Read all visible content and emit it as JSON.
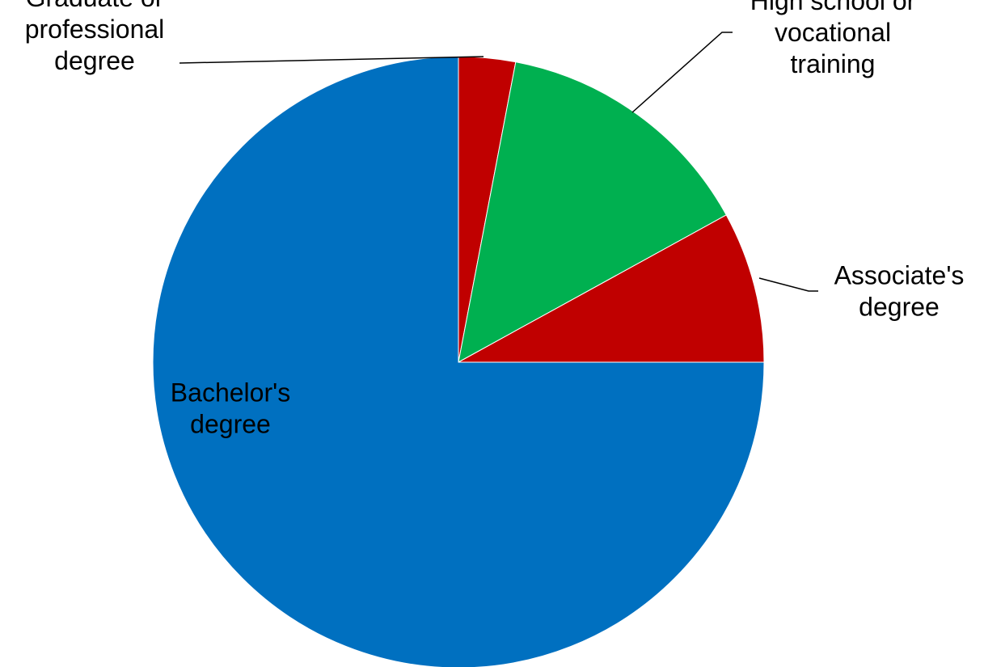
{
  "chart_data": {
    "type": "pie",
    "start_angle_deg": 0,
    "direction": "clockwise",
    "slices": [
      {
        "label": "Graduate or professional degree",
        "label_lines": [
          "Graduate or",
          "professional",
          "degree"
        ],
        "value": 3,
        "color": "#C00000"
      },
      {
        "label": "High school or vocational training",
        "label_lines": [
          "High school or",
          "vocational",
          "training"
        ],
        "value": 14,
        "color": "#00B050"
      },
      {
        "label": "Associate's degree",
        "label_lines": [
          "Associate's",
          "degree"
        ],
        "value": 8,
        "color": "#C00000"
      },
      {
        "label": "Bachelor's degree",
        "label_lines": [
          "Bachelor's",
          "degree"
        ],
        "value": 75,
        "color": "#0070C0"
      }
    ],
    "data_labels": "category name",
    "legend": "none"
  }
}
